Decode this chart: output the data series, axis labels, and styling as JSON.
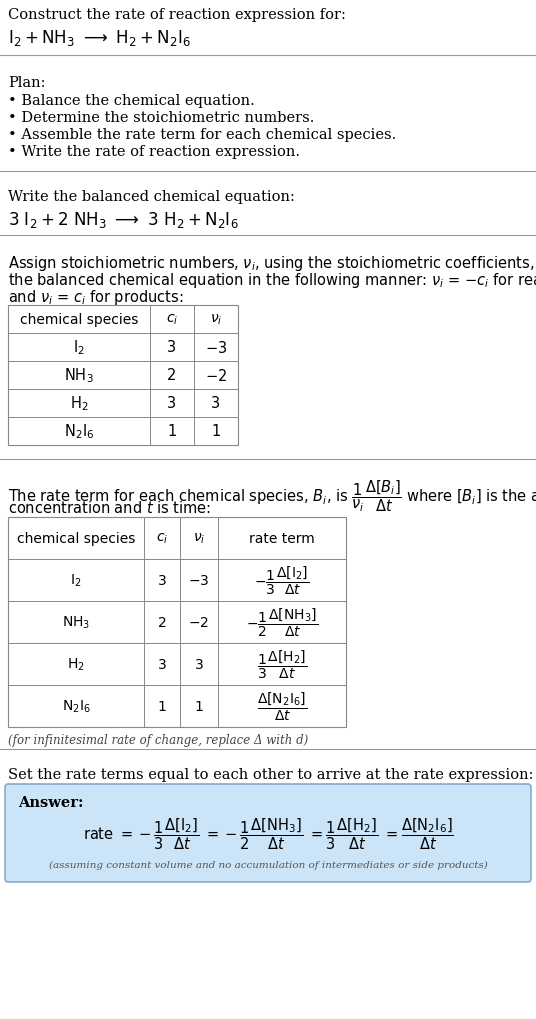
{
  "bg_color": "#ffffff",
  "answer_bg_color": "#cce4f7",
  "plan_items": [
    "• Balance the chemical equation.",
    "• Determine the stoichiometric numbers.",
    "• Assemble the rate term for each chemical species.",
    "• Write the rate of reaction expression."
  ],
  "footnote": "(assuming constant volume and no accumulation of intermediates or side products)",
  "footnote2": "(for infinitesimal rate of change, replace Δ with d)"
}
